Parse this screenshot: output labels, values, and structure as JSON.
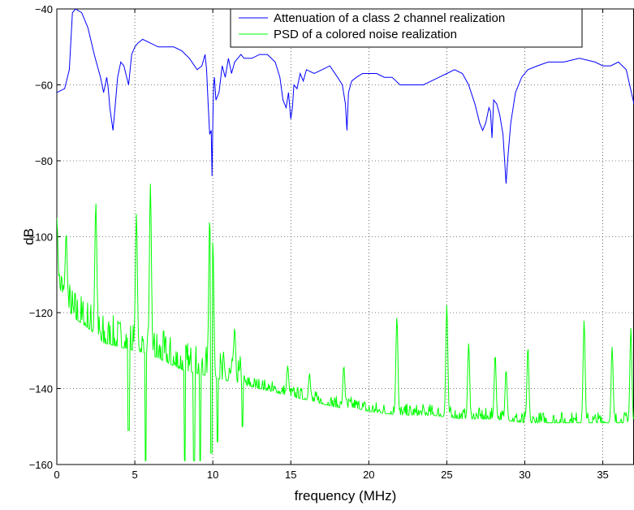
{
  "chart_data": {
    "type": "line",
    "title": "",
    "xlabel": "frequency (MHz)",
    "ylabel": "dB",
    "xlim": [
      0,
      37
    ],
    "ylim": [
      -160,
      -40
    ],
    "xticks": [
      0,
      5,
      10,
      15,
      20,
      25,
      30,
      35
    ],
    "yticks": [
      -160,
      -140,
      -120,
      -100,
      -80,
      -60,
      -40
    ],
    "xtick_labels": [
      "0",
      "5",
      "10",
      "15",
      "20",
      "25",
      "30",
      "35"
    ],
    "ytick_labels": [
      "−160",
      "−140",
      "−120",
      "−100",
      "−80",
      "−60",
      "−40"
    ],
    "grid": true,
    "legend_position": "top-right",
    "series": [
      {
        "name": "Attenuation of a class 2 channel realization",
        "color": "#0000ff",
        "x": [
          0,
          0.5,
          0.8,
          1.0,
          1.2,
          1.6,
          2.0,
          2.4,
          2.8,
          3.0,
          3.1,
          3.2,
          3.3,
          3.4,
          3.6,
          3.75,
          3.9,
          4.1,
          4.3,
          4.6,
          4.8,
          5.0,
          5.2,
          5.5,
          6.0,
          6.5,
          7.0,
          7.5,
          8.0,
          8.5,
          9.0,
          9.3,
          9.5,
          9.6,
          9.7,
          9.8,
          9.9,
          9.95,
          10.0,
          10.05,
          10.1,
          10.2,
          10.4,
          10.6,
          10.8,
          11.0,
          11.2,
          11.4,
          11.6,
          11.8,
          12.0,
          12.5,
          13.0,
          13.5,
          14.0,
          14.3,
          14.5,
          14.7,
          14.85,
          15.0,
          15.1,
          15.2,
          15.4,
          15.6,
          15.8,
          16.0,
          16.5,
          17.0,
          17.5,
          18.0,
          18.3,
          18.5,
          18.6,
          18.7,
          18.9,
          19.2,
          19.6,
          20.0,
          20.5,
          21.0,
          21.5,
          22.0,
          22.5,
          23.0,
          23.5,
          24.0,
          24.5,
          25.0,
          25.5,
          26.0,
          26.4,
          26.8,
          27.1,
          27.3,
          27.5,
          27.7,
          27.8,
          27.9,
          28.0,
          28.2,
          28.4,
          28.6,
          28.8,
          28.9,
          29.1,
          29.4,
          29.8,
          30.2,
          30.8,
          31.5,
          32.5,
          33.5,
          34.5,
          35.0,
          35.5,
          36.0,
          36.5,
          37.0
        ],
        "y": [
          -62,
          -61,
          -56,
          -41,
          -40,
          -41,
          -45,
          -52,
          -58,
          -62,
          -60,
          -58,
          -61,
          -66,
          -72,
          -65,
          -58,
          -54,
          -55,
          -60,
          -52,
          -50,
          -49,
          -48,
          -49,
          -50,
          -50,
          -50,
          -51,
          -53,
          -56,
          -55,
          -52,
          -56,
          -65,
          -73,
          -72,
          -84,
          -70,
          -60,
          -58,
          -64,
          -62,
          -55,
          -58,
          -53,
          -57,
          -54,
          -53,
          -52,
          -53,
          -53,
          -52,
          -52,
          -54,
          -58,
          -64,
          -66,
          -62,
          -69,
          -66,
          -60,
          -61,
          -57,
          -59,
          -56,
          -57,
          -56,
          -55,
          -58,
          -60,
          -65,
          -72,
          -62,
          -59,
          -58,
          -57,
          -57,
          -57,
          -58,
          -58,
          -60,
          -60,
          -60,
          -60,
          -59,
          -58,
          -57,
          -56,
          -57,
          -60,
          -65,
          -70,
          -72,
          -70,
          -66,
          -67,
          -74,
          -64,
          -65,
          -68,
          -73,
          -86,
          -80,
          -70,
          -62,
          -58,
          -56,
          -55,
          -54,
          -54,
          -53,
          -54,
          -55,
          -55,
          -54,
          -56,
          -65
        ]
      },
      {
        "name": "PSD of a colored noise realization",
        "color": "#00ff00",
        "noise_seed": 7,
        "noise_points": 900,
        "baseline_x": [
          0,
          1,
          2,
          3,
          4,
          5,
          6,
          7,
          8,
          9,
          10,
          11,
          12,
          13,
          14,
          15,
          16,
          17,
          18,
          19,
          20,
          22,
          24,
          26,
          28,
          30,
          32,
          34,
          36,
          37
        ],
        "baseline_y": [
          -112,
          -121,
          -124,
          -128,
          -129,
          -130,
          -131,
          -133,
          -135,
          -136,
          -137,
          -138,
          -139,
          -140,
          -141,
          -142,
          -143,
          -144,
          -145,
          -145,
          -146,
          -147,
          -147,
          -148,
          -148,
          -149,
          -149,
          -149,
          -149,
          -149
        ],
        "peaks_x": [
          0,
          0.6,
          2.5,
          5.1,
          6.0,
          9.8,
          10.0,
          11.4,
          14.8,
          16.2,
          18.4,
          21.8,
          25.0,
          26.4,
          28.1,
          28.8,
          30.2,
          33.8,
          35.6,
          36.8
        ],
        "peaks_y": [
          -95,
          -99,
          -91,
          -94,
          -86,
          -95,
          -101,
          -124,
          -134,
          -136,
          -134,
          -121,
          -118,
          -128,
          -131,
          -135,
          -129,
          -122,
          -129,
          -124
        ],
        "dips_x": [
          4.6,
          5.7,
          8.2,
          8.8,
          9.2,
          9.9,
          10.3,
          11.9
        ],
        "dips_y": [
          -151,
          -159,
          -159,
          -159,
          -159,
          -157,
          -154,
          -150
        ]
      }
    ]
  }
}
